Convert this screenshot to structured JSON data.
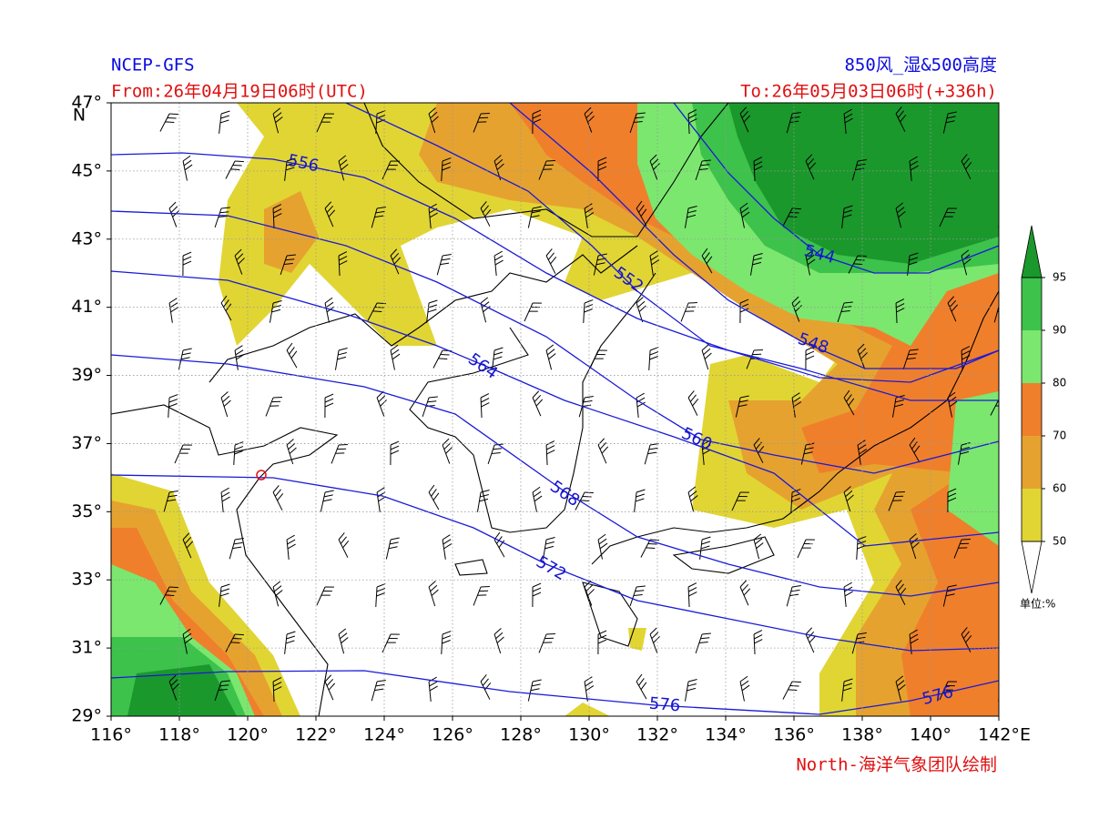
{
  "header": {
    "source": "NCEP-GFS",
    "product": "850风_湿&500高度",
    "from": "From:26年04月19日06时(UTC)",
    "to": "To:26年05月03日06时(+336h)"
  },
  "map": {
    "lon_ticks": [
      {
        "value": 116,
        "label": "116°"
      },
      {
        "value": 118,
        "label": "118°"
      },
      {
        "value": 120,
        "label": "120°"
      },
      {
        "value": 122,
        "label": "122°"
      },
      {
        "value": 124,
        "label": "124°"
      },
      {
        "value": 126,
        "label": "126°"
      },
      {
        "value": 128,
        "label": "128°"
      },
      {
        "value": 130,
        "label": "130°"
      },
      {
        "value": 132,
        "label": "132°"
      },
      {
        "value": 134,
        "label": "134°"
      },
      {
        "value": 136,
        "label": "136°"
      },
      {
        "value": 138,
        "label": "138°"
      },
      {
        "value": 140,
        "label": "140°"
      },
      {
        "value": 142,
        "label": "142°"
      }
    ],
    "lat_ticks": [
      {
        "value": 29,
        "label": "29°"
      },
      {
        "value": 31,
        "label": "31°"
      },
      {
        "value": 33,
        "label": "33°"
      },
      {
        "value": 35,
        "label": "35°"
      },
      {
        "value": 37,
        "label": "37°"
      },
      {
        "value": 39,
        "label": "39°"
      },
      {
        "value": 41,
        "label": "41°"
      },
      {
        "value": 43,
        "label": "43°"
      },
      {
        "value": 45,
        "label": "45°"
      },
      {
        "value": 47,
        "label": "47°"
      }
    ],
    "lat_unit": "N",
    "lon_unit": "E",
    "contour_labels": [
      556,
      552,
      544,
      548,
      564,
      560,
      568,
      572,
      576,
      576
    ]
  },
  "colorbar": {
    "ticks": [
      50,
      60,
      70,
      80,
      90,
      95
    ],
    "colors": [
      "#e1d534",
      "#e6a22f",
      "#f07f2b",
      "#7be76f",
      "#3dc24b"
    ],
    "over_color": "#1b982c",
    "unit": "单位:%"
  },
  "footer": {
    "credit": "North-海洋气象团队绘制"
  }
}
